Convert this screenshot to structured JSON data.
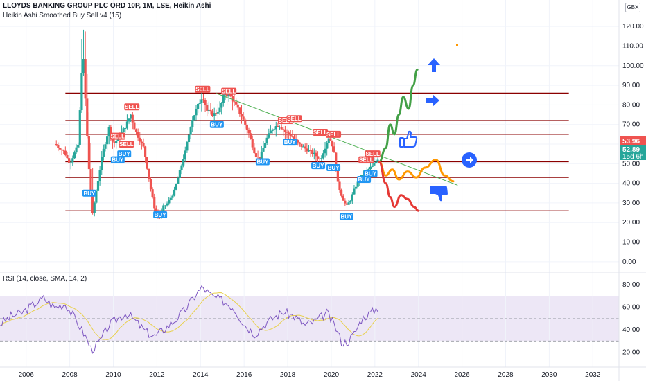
{
  "header": {
    "title": "LLOYDS BANKING GROUP PLC ORD 10P, 1M, LSE, Heikin Ashi",
    "indicator": "Heikin Ashi Smoothed Buy Sell v4  (15)",
    "currency": "GBX"
  },
  "rsi": {
    "title": "RSI (14, close, SMA, 14, 2)",
    "ticks": [
      20,
      40,
      60,
      80
    ],
    "band": [
      30,
      70
    ],
    "midline": 50
  },
  "price_axis": {
    "ticks": [
      "0.00",
      "10.00",
      "20.00",
      "30.00",
      "40.00",
      "50.00",
      "60.00",
      "70.00",
      "80.00",
      "90.00",
      "100.00",
      "110.00",
      "120.00"
    ],
    "last_close_label": "52.89",
    "countdown_label": "15d 6h",
    "crosshair_label": "53.96"
  },
  "time_axis": {
    "ticks": [
      "2006",
      "2008",
      "2010",
      "2012",
      "2014",
      "2016",
      "2018",
      "2020",
      "2022",
      "2024",
      "2026",
      "2028",
      "2030",
      "2032"
    ]
  },
  "colors": {
    "up": "#26a69a",
    "down": "#ef5350",
    "hline": "#8b0000",
    "trendline": "#4caf50",
    "rsi_line": "#7e57c2",
    "rsi_ma": "#e8d04a",
    "rsi_band": "#ede7f6",
    "projection_up": "#43a047",
    "projection_flat": "#ff9800",
    "projection_down": "#e53935",
    "arrow_blue": "#2962ff",
    "buy_label": "#2196f3",
    "sell_label": "#ef5350"
  },
  "chart_data": {
    "type": "candlestick",
    "title": "LLOYDS BANKING GROUP PLC ORD 10P, 1M, LSE, Heikin Ashi",
    "y_unit": "GBX",
    "ylim": [
      -5,
      125
    ],
    "xlim": [
      2004.8,
      2033.2
    ],
    "grid": true,
    "price_path": [
      [
        2007.3,
        60
      ],
      [
        2007.55,
        58
      ],
      [
        2007.75,
        56
      ],
      [
        2008.0,
        50
      ],
      [
        2008.4,
        60
      ],
      [
        2008.6,
        110
      ],
      [
        2008.85,
        52
      ],
      [
        2009.05,
        24
      ],
      [
        2009.2,
        35
      ],
      [
        2009.5,
        55
      ],
      [
        2009.8,
        68
      ],
      [
        2010.0,
        60
      ],
      [
        2010.3,
        64
      ],
      [
        2010.6,
        70
      ],
      [
        2010.8,
        75
      ],
      [
        2011.0,
        67
      ],
      [
        2011.4,
        58
      ],
      [
        2011.7,
        38
      ],
      [
        2011.9,
        27
      ],
      [
        2012.1,
        22
      ],
      [
        2012.3,
        28
      ],
      [
        2012.5,
        30
      ],
      [
        2012.8,
        36
      ],
      [
        2013.0,
        44
      ],
      [
        2013.3,
        56
      ],
      [
        2013.6,
        72
      ],
      [
        2013.9,
        80
      ],
      [
        2014.1,
        85
      ],
      [
        2014.3,
        77
      ],
      [
        2014.6,
        75
      ],
      [
        2014.9,
        78
      ],
      [
        2015.1,
        86
      ],
      [
        2015.4,
        84
      ],
      [
        2015.6,
        80
      ],
      [
        2015.9,
        74
      ],
      [
        2016.2,
        66
      ],
      [
        2016.5,
        55
      ],
      [
        2016.7,
        52
      ],
      [
        2017.0,
        62
      ],
      [
        2017.3,
        68
      ],
      [
        2017.6,
        70
      ],
      [
        2017.9,
        66
      ],
      [
        2018.2,
        64
      ],
      [
        2018.5,
        60
      ],
      [
        2018.9,
        57
      ],
      [
        2019.2,
        55
      ],
      [
        2019.5,
        52
      ],
      [
        2019.7,
        58
      ],
      [
        2019.9,
        64
      ],
      [
        2020.1,
        58
      ],
      [
        2020.3,
        40
      ],
      [
        2020.5,
        33
      ],
      [
        2020.7,
        28
      ],
      [
        2020.9,
        32
      ],
      [
        2021.1,
        38
      ],
      [
        2021.4,
        44
      ],
      [
        2021.7,
        47
      ],
      [
        2022.0,
        50
      ],
      [
        2022.15,
        52.89
      ]
    ],
    "horizontal_levels": [
      86,
      72,
      65,
      51,
      43,
      26
    ],
    "trendline": [
      [
        2014.7,
        86
      ],
      [
        2025.8,
        39
      ]
    ],
    "signals": [
      {
        "label": "BUY",
        "x": 2008.9,
        "y": 35
      },
      {
        "label": "SELL",
        "x": 2010.2,
        "y": 64
      },
      {
        "label": "SELL",
        "x": 2010.6,
        "y": 60
      },
      {
        "label": "BUY",
        "x": 2010.2,
        "y": 52
      },
      {
        "label": "BUY",
        "x": 2010.5,
        "y": 55
      },
      {
        "label": "SELL",
        "x": 2010.85,
        "y": 79
      },
      {
        "label": "BUY",
        "x": 2012.15,
        "y": 24
      },
      {
        "label": "SELL",
        "x": 2014.1,
        "y": 88
      },
      {
        "label": "BUY",
        "x": 2014.75,
        "y": 70
      },
      {
        "label": "SELL",
        "x": 2015.3,
        "y": 87
      },
      {
        "label": "BUY",
        "x": 2016.85,
        "y": 51
      },
      {
        "label": "SELL",
        "x": 2017.9,
        "y": 72
      },
      {
        "label": "SELL",
        "x": 2018.3,
        "y": 73
      },
      {
        "label": "BUY",
        "x": 2018.1,
        "y": 61
      },
      {
        "label": "SELL",
        "x": 2019.5,
        "y": 66
      },
      {
        "label": "SELL",
        "x": 2020.1,
        "y": 65
      },
      {
        "label": "BUY",
        "x": 2019.4,
        "y": 49
      },
      {
        "label": "BUY",
        "x": 2020.1,
        "y": 48
      },
      {
        "label": "BUY",
        "x": 2020.7,
        "y": 23
      },
      {
        "label": "SELL",
        "x": 2021.6,
        "y": 52
      },
      {
        "label": "SELL",
        "x": 2021.9,
        "y": 55
      },
      {
        "label": "BUY",
        "x": 2021.8,
        "y": 45
      },
      {
        "label": "BUY",
        "x": 2021.5,
        "y": 42
      }
    ],
    "projections": [
      {
        "scenario": "up",
        "points": [
          [
            2022.2,
            51
          ],
          [
            2022.5,
            58
          ],
          [
            2022.7,
            70
          ],
          [
            2022.9,
            65
          ],
          [
            2023.1,
            75
          ],
          [
            2023.3,
            84
          ],
          [
            2023.55,
            78
          ],
          [
            2023.75,
            90
          ],
          [
            2023.95,
            98
          ]
        ]
      },
      {
        "scenario": "sideways",
        "points": [
          [
            2022.2,
            51
          ],
          [
            2022.5,
            44
          ],
          [
            2022.8,
            47
          ],
          [
            2023.1,
            42
          ],
          [
            2023.5,
            46
          ],
          [
            2023.9,
            43
          ],
          [
            2024.3,
            48
          ],
          [
            2024.8,
            52
          ],
          [
            2025.2,
            44
          ],
          [
            2025.6,
            41
          ]
        ]
      },
      {
        "scenario": "down",
        "points": [
          [
            2022.2,
            51
          ],
          [
            2022.5,
            40
          ],
          [
            2022.7,
            33
          ],
          [
            2022.9,
            28
          ],
          [
            2023.2,
            34
          ],
          [
            2023.5,
            32
          ],
          [
            2023.8,
            28
          ],
          [
            2024.0,
            26
          ]
        ]
      }
    ],
    "rsi_series": {
      "x": [
        2004.8,
        2005.3,
        2005.8,
        2006.3,
        2006.8,
        2007.3,
        2007.8,
        2008.3,
        2008.7,
        2009.0,
        2009.4,
        2009.8,
        2010.2,
        2010.6,
        2011.0,
        2011.5,
        2011.9,
        2012.3,
        2012.8,
        2013.3,
        2013.8,
        2014.1,
        2014.5,
        2015.0,
        2015.5,
        2016.0,
        2016.5,
        2016.9,
        2017.3,
        2017.8,
        2018.3,
        2018.8,
        2019.3,
        2019.8,
        2020.2,
        2020.5,
        2020.8,
        2021.1,
        2021.4,
        2021.8,
        2022.15
      ],
      "values": [
        45,
        52,
        55,
        62,
        68,
        60,
        63,
        48,
        35,
        22,
        30,
        44,
        50,
        55,
        48,
        38,
        34,
        40,
        48,
        58,
        72,
        78,
        70,
        66,
        60,
        45,
        36,
        44,
        50,
        56,
        52,
        44,
        48,
        55,
        42,
        28,
        30,
        38,
        50,
        55,
        60
      ]
    }
  }
}
